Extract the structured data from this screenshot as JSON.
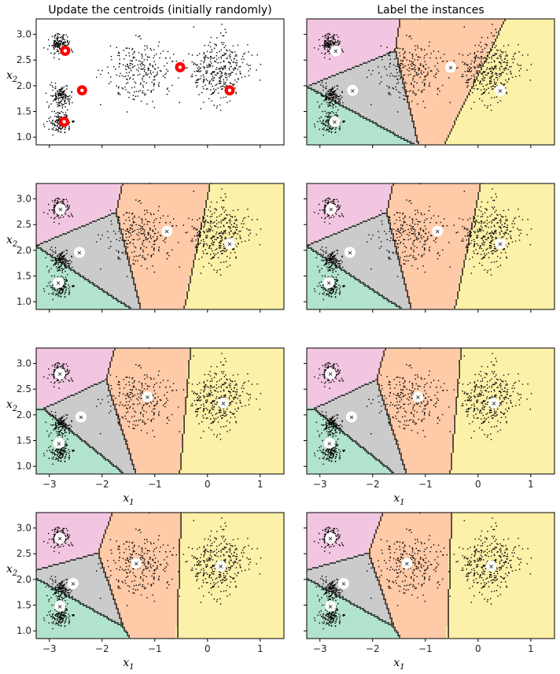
{
  "figure": {
    "titles": [
      "Update the centroids (initially randomly)",
      "Label the instances"
    ],
    "xlabel": {
      "main": "x",
      "sub": "1"
    },
    "ylabel": {
      "main": "x",
      "sub": "2"
    }
  },
  "chart_data": {
    "type": "scatter",
    "xlim": [
      -3.25,
      1.45
    ],
    "ylim": [
      0.85,
      3.3
    ],
    "xticks": [
      -3,
      -2,
      -1,
      0,
      1
    ],
    "xtick_labels": [
      "−3",
      "−2",
      "−1",
      "0",
      "1"
    ],
    "yticks": [
      1.0,
      1.5,
      2.0,
      2.5,
      3.0
    ],
    "ytick_labels": [
      "1.0",
      "1.5",
      "2.0",
      "2.5",
      "3.0"
    ],
    "grid": false,
    "clusters": [
      {
        "cx": -2.8,
        "cy": 2.8,
        "sx": 0.1,
        "sy": 0.1,
        "n": 150
      },
      {
        "cx": -2.8,
        "cy": 1.8,
        "sx": 0.1,
        "sy": 0.1,
        "n": 150
      },
      {
        "cx": -2.8,
        "cy": 1.3,
        "sx": 0.1,
        "sy": 0.1,
        "n": 150
      },
      {
        "cx": -1.3,
        "cy": 2.3,
        "sx": 0.3,
        "sy": 0.3,
        "n": 250
      },
      {
        "cx": 0.2,
        "cy": 2.3,
        "sx": 0.3,
        "sy": 0.3,
        "n": 350
      }
    ],
    "region_colors": {
      "pink": "#f2c6e0",
      "gray": "#cbcbcb",
      "green": "#b2e3cc",
      "orange": "#fecaa8",
      "yellow": "#fdf0a8"
    },
    "panels": [
      {
        "row": 0,
        "col": 0,
        "show_regions": false,
        "centroid_style": "red",
        "centroids": [
          [
            -2.7,
            2.68
          ],
          [
            -2.38,
            1.91
          ],
          [
            -2.72,
            1.3
          ],
          [
            -0.52,
            2.36
          ],
          [
            0.42,
            1.91
          ]
        ]
      },
      {
        "row": 0,
        "col": 1,
        "show_regions": true,
        "centroid_style": "white",
        "centroids": [
          [
            -2.7,
            2.68
          ],
          [
            -2.38,
            1.91
          ],
          [
            -2.72,
            1.3
          ],
          [
            -0.52,
            2.36
          ],
          [
            0.42,
            1.91
          ]
        ]
      },
      {
        "row": 1,
        "col": 0,
        "show_regions": true,
        "centroid_style": "white",
        "centroids": [
          [
            -2.79,
            2.8
          ],
          [
            -2.43,
            1.96
          ],
          [
            -2.83,
            1.37
          ],
          [
            -0.77,
            2.37
          ],
          [
            0.42,
            2.13
          ]
        ]
      },
      {
        "row": 1,
        "col": 1,
        "show_regions": true,
        "centroid_style": "white",
        "centroids": [
          [
            -2.79,
            2.8
          ],
          [
            -2.43,
            1.96
          ],
          [
            -2.83,
            1.37
          ],
          [
            -0.77,
            2.37
          ],
          [
            0.42,
            2.13
          ]
        ]
      },
      {
        "row": 2,
        "col": 0,
        "show_regions": true,
        "centroid_style": "white",
        "centroids": [
          [
            -2.8,
            2.8
          ],
          [
            -2.4,
            1.96
          ],
          [
            -2.82,
            1.45
          ],
          [
            -1.14,
            2.35
          ],
          [
            0.3,
            2.23
          ]
        ]
      },
      {
        "row": 2,
        "col": 1,
        "show_regions": true,
        "centroid_style": "white",
        "centroids": [
          [
            -2.8,
            2.8
          ],
          [
            -2.4,
            1.96
          ],
          [
            -2.82,
            1.45
          ],
          [
            -1.14,
            2.35
          ],
          [
            0.3,
            2.23
          ]
        ]
      },
      {
        "row": 3,
        "col": 0,
        "show_regions": true,
        "centroid_style": "white",
        "centroids": [
          [
            -2.8,
            2.8
          ],
          [
            -2.55,
            1.92
          ],
          [
            -2.8,
            1.48
          ],
          [
            -1.35,
            2.31
          ],
          [
            0.25,
            2.26
          ]
        ]
      },
      {
        "row": 3,
        "col": 1,
        "show_regions": true,
        "centroid_style": "white",
        "centroids": [
          [
            -2.8,
            2.8
          ],
          [
            -2.55,
            1.92
          ],
          [
            -2.8,
            1.48
          ],
          [
            -1.35,
            2.31
          ],
          [
            0.25,
            2.26
          ]
        ]
      }
    ]
  }
}
